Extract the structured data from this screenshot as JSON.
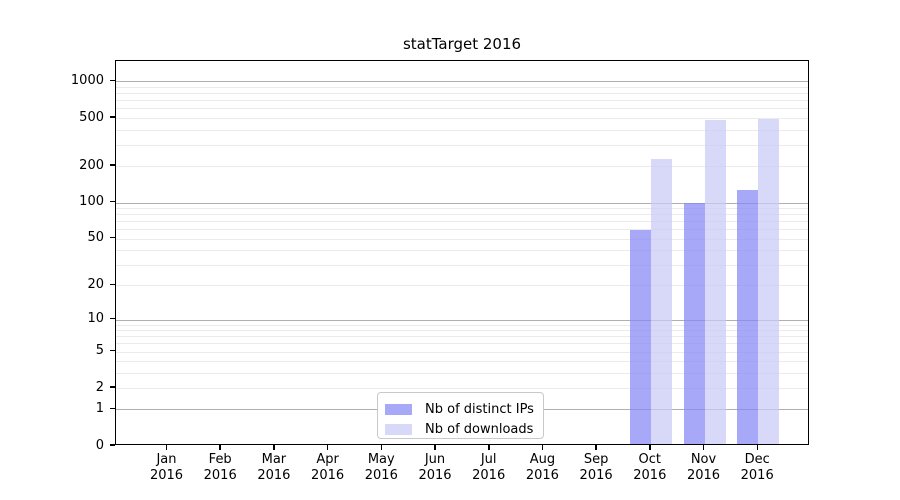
{
  "title": "statTarget 2016",
  "chart_data": {
    "type": "bar",
    "title": "statTarget 2016",
    "y_scale": "log10(value+1)",
    "y_ticks": [
      0,
      1,
      2,
      5,
      10,
      20,
      50,
      100,
      200,
      500,
      1000
    ],
    "ylim": [
      0,
      1400
    ],
    "grid": "horizontal; faint minor gridlines at 2-9 per decade, darker major gridlines at 1, 10, 100, 1000",
    "legend_position": "bottom-center inside plot area",
    "year": "2016",
    "categories": [
      "Jan 2016",
      "Feb 2016",
      "Mar 2016",
      "Apr 2016",
      "May 2016",
      "Jun 2016",
      "Jul 2016",
      "Aug 2016",
      "Sep 2016",
      "Oct 2016",
      "Nov 2016",
      "Dec 2016"
    ],
    "series": [
      {
        "name": "Nb of distinct IPs",
        "color": "rgba(134,134,247,0.72)",
        "color_on_white": "#a8a8f8",
        "values": [
          0,
          0,
          0,
          0,
          0,
          0,
          0,
          0,
          0,
          57,
          95,
          123
        ]
      },
      {
        "name": "Nb of downloads",
        "color": "rgba(201,201,247,0.72)",
        "color_on_white": "#d8d8f9",
        "values": [
          0,
          0,
          0,
          0,
          0,
          0,
          0,
          0,
          0,
          222,
          460,
          472
        ]
      }
    ],
    "colors": {
      "major_gridline": "#b0b0b0",
      "minor_gridline": "#ebebeb",
      "axis": "#000000",
      "background": "#ffffff"
    }
  }
}
